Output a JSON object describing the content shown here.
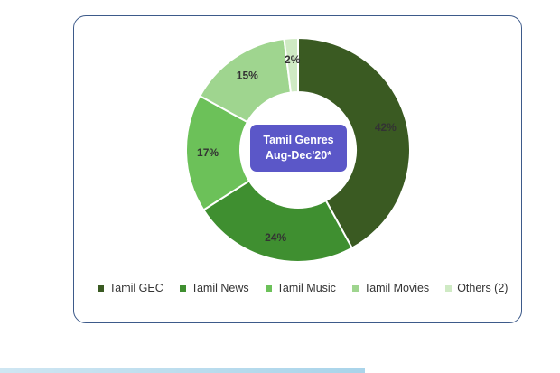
{
  "chart_data": {
    "type": "pie",
    "title": "Tamil Genres Aug-Dec'20*",
    "title_lines": [
      "Tamil Genres",
      "Aug-Dec'20*"
    ],
    "slices": [
      {
        "label": "Tamil GEC",
        "value": 42,
        "display": "42%",
        "color": "#3a5a22"
      },
      {
        "label": "Tamil News",
        "value": 24,
        "display": "24%",
        "color": "#3f8f30"
      },
      {
        "label": "Tamil Music",
        "value": 17,
        "display": "17%",
        "color": "#6cc159"
      },
      {
        "label": "Tamil Movies",
        "value": 15,
        "display": "15%",
        "color": "#9fd58f"
      },
      {
        "label": "Others (2)",
        "value": 2,
        "display": "2%",
        "color": "#cfeac4"
      }
    ],
    "legend_position": "bottom",
    "label_color": "#333333"
  }
}
